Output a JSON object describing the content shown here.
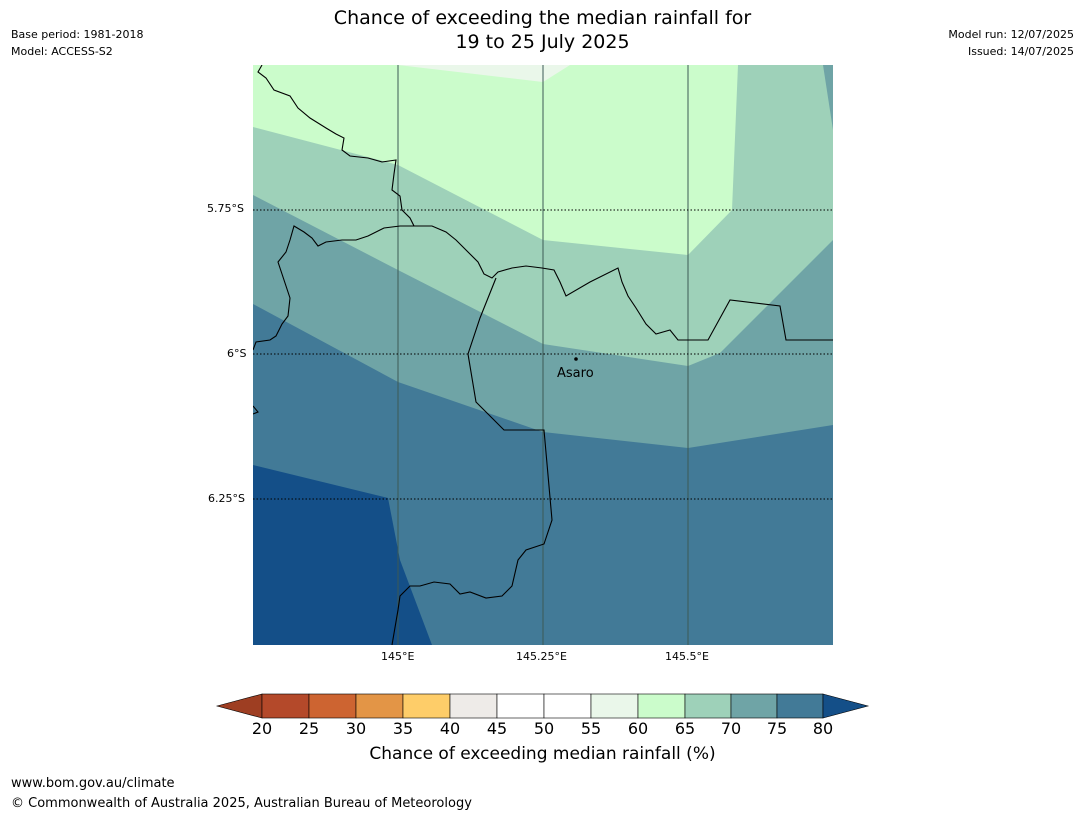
{
  "header": {
    "title_line1": "Chance of exceeding the median rainfall for",
    "title_line2": "19 to 25 July 2025",
    "base_period": "Base period: 1981-2018",
    "model": "Model: ACCESS-S2",
    "model_run": "Model run: 12/07/2025",
    "issued": "Issued: 14/07/2025"
  },
  "map": {
    "lat_ticks": [
      "5.75°S",
      "6°S",
      "6.25°S"
    ],
    "lon_ticks": [
      "145°E",
      "145.25°E",
      "145.5°E"
    ],
    "place": "Asaro"
  },
  "colorbar": {
    "ticks": [
      "20",
      "25",
      "30",
      "35",
      "40",
      "45",
      "50",
      "55",
      "60",
      "65",
      "70",
      "75",
      "80"
    ],
    "label": "Chance of exceeding median rainfall (%)",
    "colors": [
      "#9e3e22",
      "#b4492a",
      "#cd6431",
      "#e39546",
      "#fecd69",
      "#eeebe8",
      "#ffffff",
      "#ffffff",
      "#eaf7ea",
      "#cbfccb",
      "#9ed1b9",
      "#6fa4a6",
      "#427a97",
      "#144f88"
    ]
  },
  "footer": {
    "url": "www.bom.gov.au/climate",
    "copyright": "© Commonwealth of Australia 2025, Australian Bureau of Meteorology"
  }
}
